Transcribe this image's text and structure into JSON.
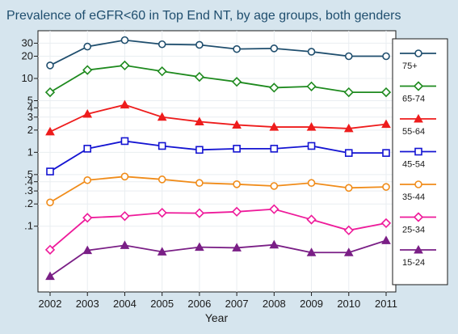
{
  "chart_data": {
    "type": "line",
    "title": "Prevalence of eGFR<60 in Top End NT, by age groups, both genders",
    "xlabel": "Year",
    "ylabel": "",
    "y_scale": "log",
    "ylim": [
      0.017,
      40
    ],
    "xlim": [
      2002,
      2011
    ],
    "x": [
      2002,
      2003,
      2004,
      2005,
      2006,
      2007,
      2008,
      2009,
      2010,
      2011
    ],
    "x_ticks": [
      "2002",
      "2003",
      "2004",
      "2005",
      "2006",
      "2007",
      "2008",
      "2009",
      "2010",
      "2011"
    ],
    "y_ticks": [
      {
        "value": 30,
        "label": "30"
      },
      {
        "value": 20,
        "label": "20"
      },
      {
        "value": 10,
        "label": "10"
      },
      {
        "value": 5,
        "label": "5"
      },
      {
        "value": 4,
        "label": "4"
      },
      {
        "value": 3,
        "label": "3"
      },
      {
        "value": 2,
        "label": "2"
      },
      {
        "value": 1,
        "label": "1"
      },
      {
        "value": 0.5,
        "label": ".5"
      },
      {
        "value": 0.4,
        "label": ".4"
      },
      {
        "value": 0.3,
        "label": ".3"
      },
      {
        "value": 0.2,
        "label": ".2"
      },
      {
        "value": 0.1,
        "label": ".1"
      }
    ],
    "grid": true,
    "legend_position": "right",
    "series": [
      {
        "name": "75+",
        "color": "#1f4e6e",
        "marker": "circle",
        "values": [
          15,
          27,
          33,
          29,
          28.5,
          25,
          25.5,
          23,
          20,
          20
        ]
      },
      {
        "name": "65-74",
        "color": "#1e8a1e",
        "marker": "diamond",
        "values": [
          6.5,
          13,
          15,
          12.5,
          10.5,
          9,
          7.5,
          7.8,
          6.5,
          6.5
        ]
      },
      {
        "name": "55-64",
        "color": "#ee1c1c",
        "marker": "triangle",
        "values": [
          1.9,
          3.3,
          4.4,
          3.0,
          2.6,
          2.35,
          2.2,
          2.2,
          2.1,
          2.4
        ]
      },
      {
        "name": "45-54",
        "color": "#1414d2",
        "marker": "square",
        "values": [
          0.55,
          1.12,
          1.42,
          1.22,
          1.08,
          1.12,
          1.12,
          1.22,
          0.98,
          0.98
        ]
      },
      {
        "name": "35-44",
        "color": "#f08c1a",
        "marker": "circle",
        "values": [
          0.21,
          0.42,
          0.47,
          0.43,
          0.385,
          0.37,
          0.35,
          0.385,
          0.33,
          0.34
        ]
      },
      {
        "name": "25-34",
        "color": "#ee1a9a",
        "marker": "diamond",
        "values": [
          0.048,
          0.13,
          0.137,
          0.152,
          0.15,
          0.157,
          0.17,
          0.123,
          0.088,
          0.11
        ]
      },
      {
        "name": "15-24",
        "color": "#7a1f86",
        "marker": "triangle",
        "values": [
          0.021,
          0.047,
          0.055,
          0.045,
          0.052,
          0.051,
          0.056,
          0.044,
          0.044,
          0.064
        ]
      }
    ]
  }
}
